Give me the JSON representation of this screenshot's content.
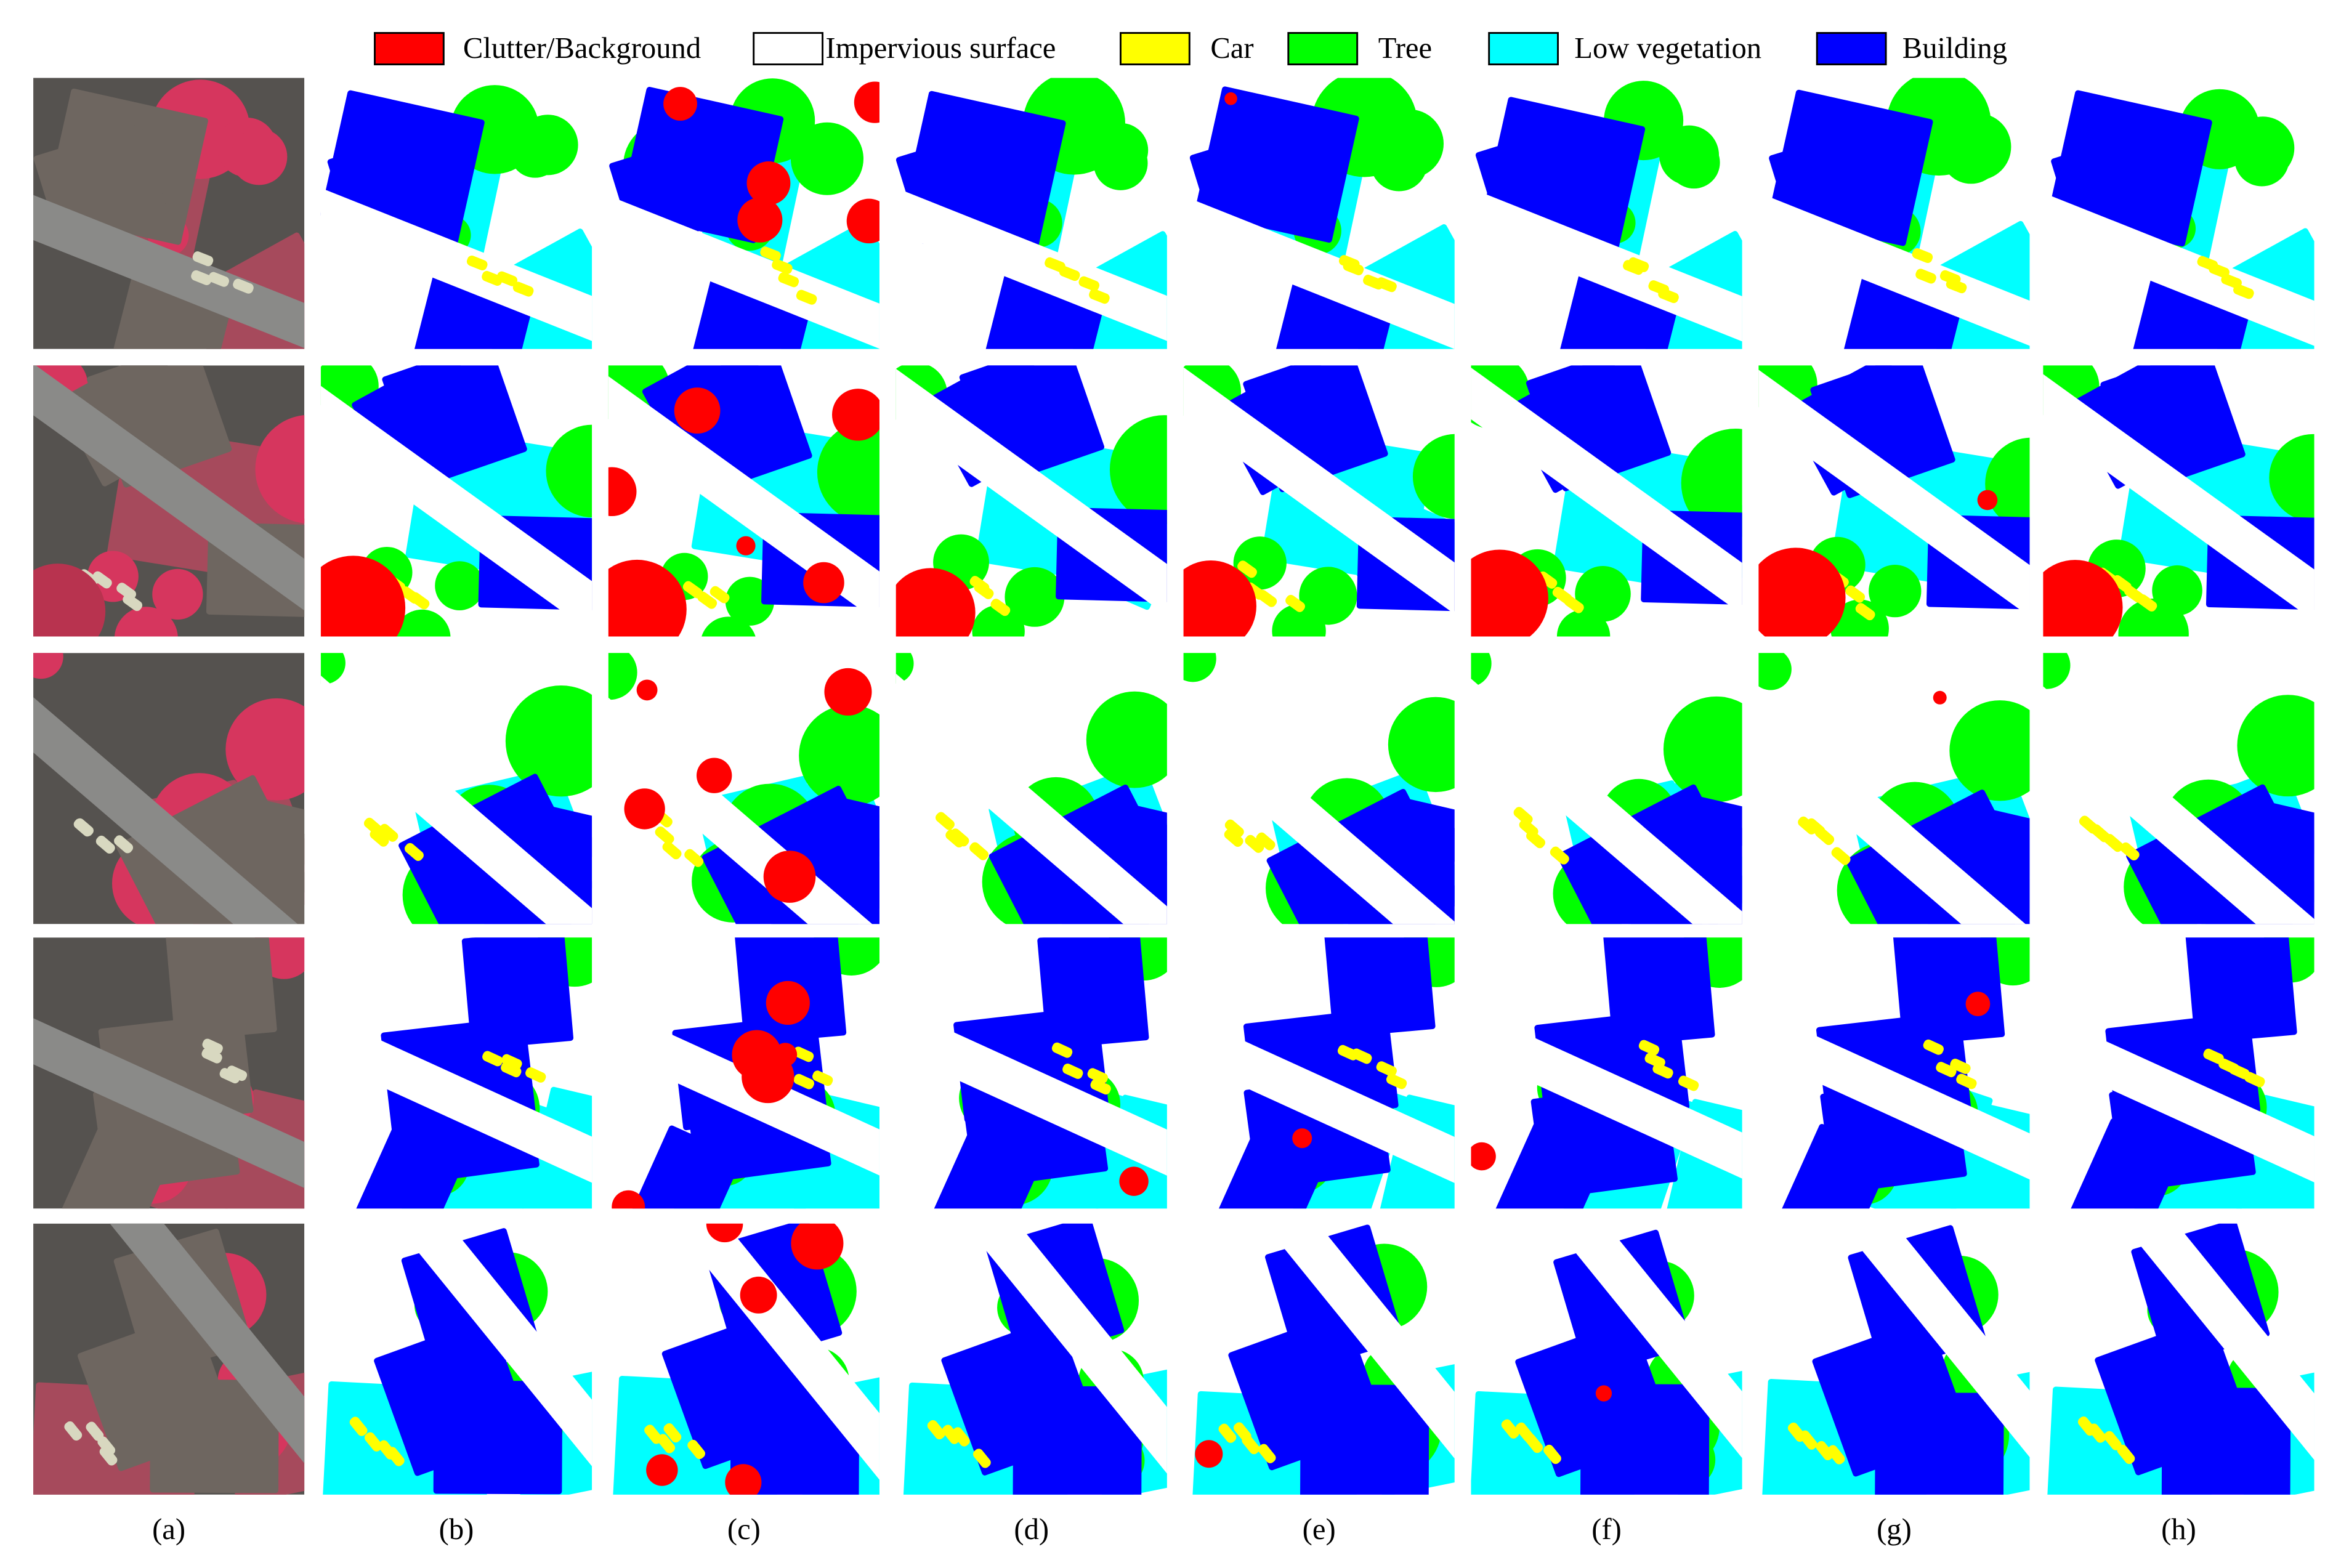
{
  "legend": [
    {
      "label": "Clutter/Background",
      "color": "#ff0000"
    },
    {
      "label": "Impervious surface",
      "color": "#ffffff"
    },
    {
      "label": "Car",
      "color": "#ffff00"
    },
    {
      "label": "Tree",
      "color": "#00ff00"
    },
    {
      "label": "Low vegetation",
      "color": "#00ffff"
    },
    {
      "label": "Building",
      "color": "#0000ff"
    }
  ],
  "columns": [
    "(a)",
    "(b)",
    "(c)",
    "(d)",
    "(e)",
    "(f)",
    "(g)",
    "(h)"
  ]
}
